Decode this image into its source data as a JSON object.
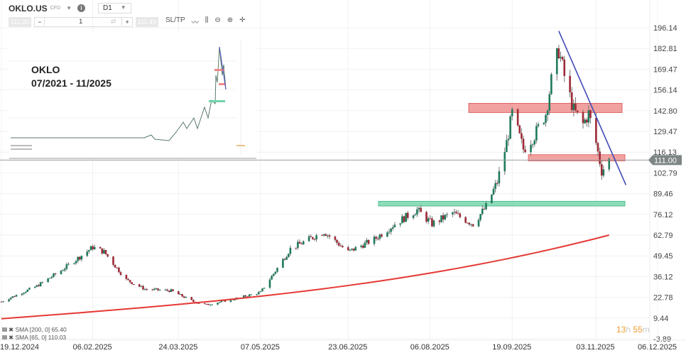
{
  "header": {
    "symbol": "OKLO.US",
    "instrument_type": "CFD",
    "timeframe": "D1",
    "sell_price": "111.00",
    "buy_price": "111.49",
    "quantity": "1",
    "sltp_label": "SL/TP",
    "tools": [
      "line-chart-icon",
      "candles-icon",
      "zoom-out-icon",
      "zoom-in-icon",
      "crosshair-icon"
    ]
  },
  "inset": {
    "title_line1": "OKLO",
    "title_line2": "07/2021 - 11/2025"
  },
  "indicators": [
    {
      "label": "SMA [200, 0] 65.40"
    },
    {
      "label": "SMA [65, 0] 110.03"
    }
  ],
  "timer": {
    "hours": "13",
    "h": "h",
    "minutes": "55",
    "m": "m"
  },
  "colors": {
    "up": "#1f7a5c",
    "down": "#9e2a36",
    "sma200": "#e53935",
    "trendline": "#3f4bb5",
    "resistance": "#ef8a8a",
    "support": "#6fd3a9",
    "timer": "#f29a2e"
  },
  "chart_data": {
    "type": "candlestick",
    "x_ticks": [
      "19.12.2024",
      "06.02.2025",
      "24.03.2025",
      "07.05.2025",
      "23.06.2025",
      "06.08.2025",
      "19.09.2025",
      "03.11.2025",
      "06.12.2025"
    ],
    "y_ticks": [
      "196.14",
      "182.81",
      "169.47",
      "156.14",
      "142.80",
      "129.47",
      "116.13",
      "102.79",
      "89.46",
      "76.12",
      "62.79",
      "49.45",
      "36.12",
      "22.78",
      "9.44",
      "-3.89"
    ],
    "ylim": [
      -3.89,
      196.14
    ],
    "current_price": "111.00",
    "approx_close_path": [
      [
        "19.12.2024",
        20
      ],
      [
        "07.01.2025",
        30
      ],
      [
        "20.01.2025",
        40
      ],
      [
        "06.02.2025",
        55
      ],
      [
        "12.02.2025",
        52
      ],
      [
        "24.02.2025",
        34
      ],
      [
        "06.03.2025",
        28
      ],
      [
        "20.03.2025",
        27
      ],
      [
        "01.04.2025",
        20
      ],
      [
        "08.04.2025",
        18
      ],
      [
        "24.04.2025",
        22
      ],
      [
        "07.05.2025",
        26
      ],
      [
        "14.05.2025",
        38
      ],
      [
        "23.05.2025",
        54
      ],
      [
        "10.06.2025",
        65
      ],
      [
        "23.06.2025",
        52
      ],
      [
        "07.07.2025",
        60
      ],
      [
        "18.07.2025",
        70
      ],
      [
        "30.07.2025",
        79
      ],
      [
        "07.08.2025",
        70
      ],
      [
        "18.08.2025",
        77
      ],
      [
        "29.08.2025",
        70
      ],
      [
        "05.09.2025",
        81
      ],
      [
        "11.09.2025",
        97
      ],
      [
        "16.09.2025",
        122
      ],
      [
        "19.09.2025",
        141
      ],
      [
        "25.09.2025",
        118
      ],
      [
        "01.10.2025",
        127
      ],
      [
        "07.10.2025",
        141
      ],
      [
        "10.10.2025",
        162
      ],
      [
        "14.10.2025",
        182
      ],
      [
        "17.10.2025",
        165
      ],
      [
        "22.10.2025",
        143
      ],
      [
        "27.10.2025",
        134
      ],
      [
        "30.10.2025",
        141
      ],
      [
        "03.11.2025",
        122
      ],
      [
        "06.11.2025",
        104
      ],
      [
        "10.11.2025",
        111
      ]
    ],
    "zones": [
      {
        "kind": "resistance",
        "from": 141.6,
        "to": 147.5
      },
      {
        "kind": "resistance",
        "from": 110.5,
        "to": 114.5
      },
      {
        "kind": "support",
        "from": 81.5,
        "to": 84.5
      }
    ],
    "trendline": {
      "from": [
        "14.10.2025",
        194
      ],
      "to": [
        "19.11.2025",
        95
      ]
    },
    "sma200": {
      "start": 9,
      "end": 62.8
    }
  }
}
